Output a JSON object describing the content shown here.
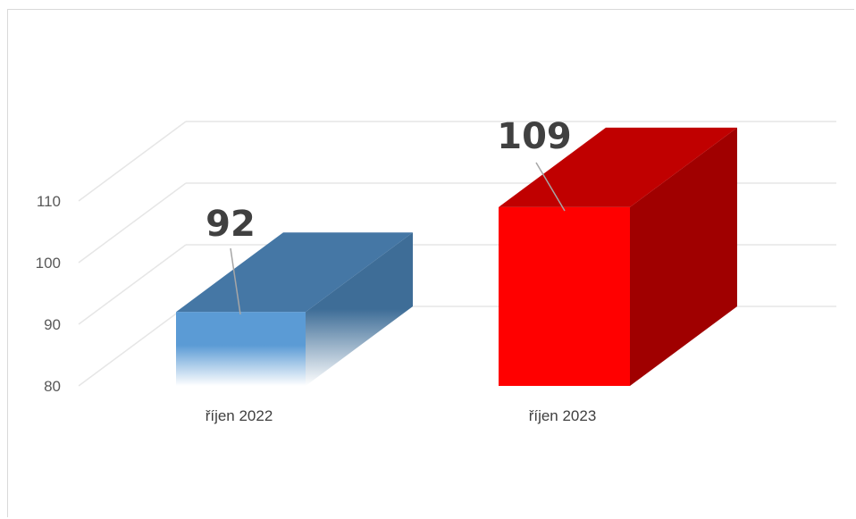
{
  "chart_data": {
    "type": "bar",
    "style": "3d-column",
    "categories": [
      "říjen 2022",
      "říjen 2023"
    ],
    "values": [
      92,
      109
    ],
    "data_labels": [
      "92",
      "109"
    ],
    "ylim": [
      80,
      110
    ],
    "yticks": [
      "80",
      "90",
      "100",
      "110"
    ],
    "grid": true,
    "colors": {
      "bar_1": "#5b9bd5",
      "bar_1_side": "#3e6d97",
      "bar_1_top": "#4577a5",
      "bar_2": "#ff0000",
      "bar_2_side": "#a00000",
      "bar_2_top": "#c00000",
      "grid": "#e6e6e6",
      "leader": "#a6a6a6"
    }
  }
}
